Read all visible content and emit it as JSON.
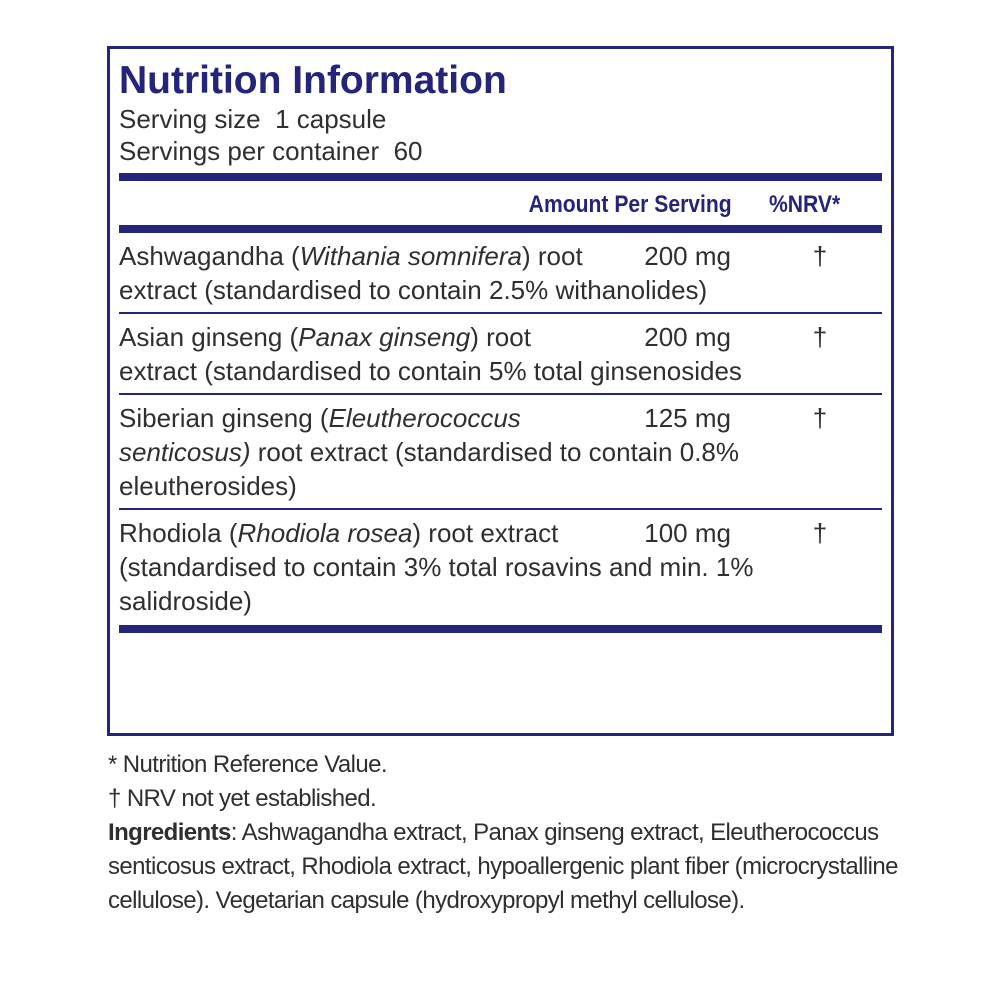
{
  "header": {
    "title": "Nutrition Information",
    "serving_size": "Serving size  1 capsule",
    "servings_per_container": "Servings per container  60"
  },
  "table": {
    "columns": [
      "Amount Per Serving",
      "%NRV*"
    ],
    "rows": [
      {
        "name": [
          "Ashwagandha (",
          "Withania somnifera",
          ") root extract (standardised to contain 2.5% withanolides)"
        ],
        "amount": "200 mg",
        "nrv": "†"
      },
      {
        "name": [
          "Asian ginseng (",
          "Panax ginseng",
          ") root extract (standardised to contain 5% total ginsenosides"
        ],
        "amount": "200 mg",
        "nrv": "†"
      },
      {
        "name": [
          "Siberian ginseng (",
          "Eleutherococcus senticosus)",
          " root extract (standardised to contain 0.8% eleutherosides)"
        ],
        "amount": "125 mg",
        "nrv": "†"
      },
      {
        "name": [
          "Rhodiola (",
          "Rhodiola rosea",
          ") root extract (standardised to contain 3% total rosavins and min. 1% salidroside)"
        ],
        "amount": "100 mg",
        "nrv": "†"
      }
    ]
  },
  "footer": {
    "notes": [
      "* Nutrition Reference Value.",
      "† NRV not yet established."
    ],
    "ingredients_label": "Ingredients",
    "ingredients_text": ": Ashwagandha extract, Panax ginseng extract, Eleutherococcus senticosus extract, Rhodiola extract, hypoallergenic plant fiber (microcrystalline cellulose). Vegetarian capsule (hydroxypropyl methyl cellulose)."
  }
}
